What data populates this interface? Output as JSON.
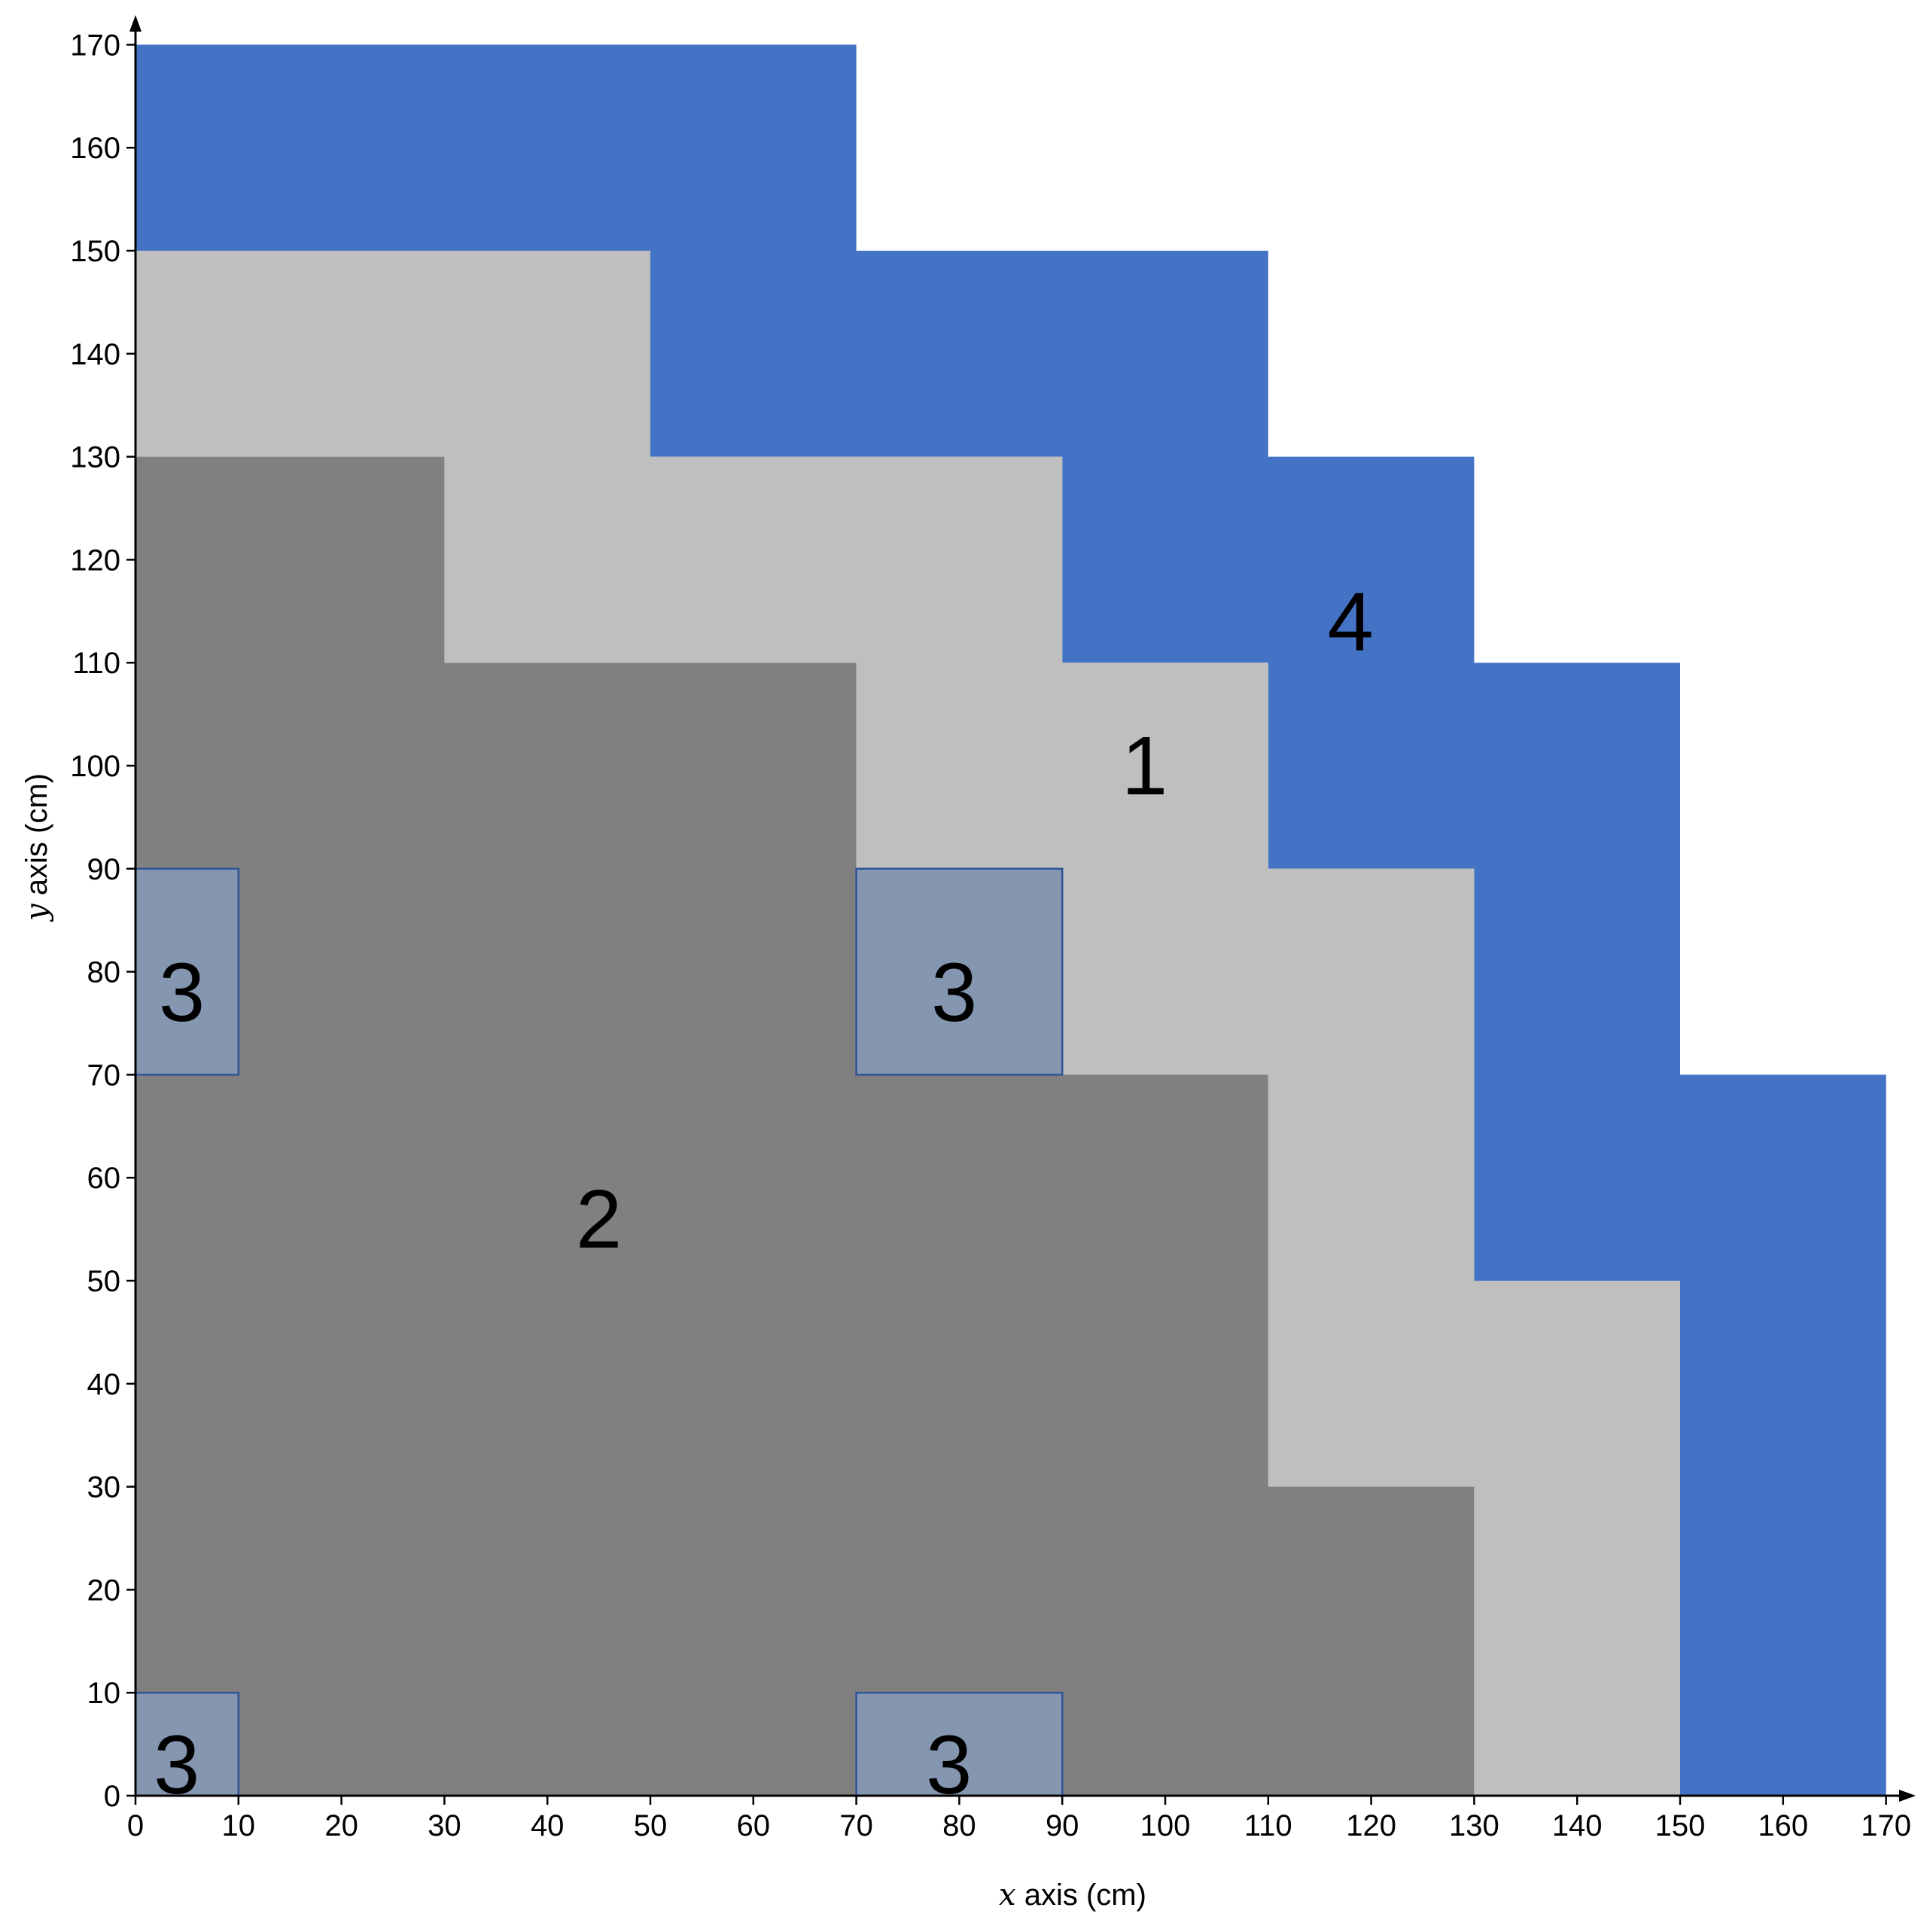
{
  "axes": {
    "x_label_var": "x",
    "x_label_rest": " axis (cm)",
    "y_label_var": "y",
    "y_label_rest": " axis (cm)",
    "x_ticks": [
      0,
      10,
      20,
      30,
      40,
      50,
      60,
      70,
      80,
      90,
      100,
      110,
      120,
      130,
      140,
      150,
      160,
      170
    ],
    "y_ticks": [
      0,
      10,
      20,
      30,
      40,
      50,
      60,
      70,
      80,
      90,
      100,
      110,
      120,
      130,
      140,
      150,
      160,
      170
    ],
    "range": [
      0,
      170
    ]
  },
  "colors": {
    "region_4": "#4472C4",
    "region_1": "#BFBFBF",
    "region_2": "#808080",
    "region_3_fill": "#8496B0",
    "region_3_stroke": "#2F5597"
  },
  "regions": {
    "region_4": {
      "label": "4",
      "label_at": [
        118,
        114
      ],
      "polygon": [
        [
          0,
          170
        ],
        [
          70,
          170
        ],
        [
          70,
          150
        ],
        [
          110,
          150
        ],
        [
          110,
          130
        ],
        [
          130,
          130
        ],
        [
          130,
          110
        ],
        [
          150,
          110
        ],
        [
          150,
          70
        ],
        [
          170,
          70
        ],
        [
          170,
          0
        ],
        [
          150,
          0
        ],
        [
          150,
          50
        ],
        [
          130,
          50
        ],
        [
          130,
          90
        ],
        [
          110,
          90
        ],
        [
          110,
          110
        ],
        [
          90,
          110
        ],
        [
          90,
          130
        ],
        [
          50,
          130
        ],
        [
          50,
          150
        ],
        [
          0,
          150
        ]
      ]
    },
    "region_1": {
      "label": "1",
      "label_at": [
        98,
        100
      ],
      "polygon": [
        [
          0,
          150
        ],
        [
          50,
          150
        ],
        [
          50,
          130
        ],
        [
          90,
          130
        ],
        [
          90,
          110
        ],
        [
          110,
          110
        ],
        [
          110,
          90
        ],
        [
          130,
          90
        ],
        [
          130,
          50
        ],
        [
          150,
          50
        ],
        [
          150,
          0
        ],
        [
          130,
          0
        ],
        [
          130,
          30
        ],
        [
          110,
          30
        ],
        [
          110,
          70
        ],
        [
          90,
          70
        ],
        [
          90,
          90
        ],
        [
          70,
          90
        ],
        [
          70,
          110
        ],
        [
          30,
          110
        ],
        [
          30,
          130
        ],
        [
          0,
          130
        ]
      ]
    },
    "region_2": {
      "label": "2",
      "label_at": [
        45,
        56
      ],
      "polygon": [
        [
          0,
          130
        ],
        [
          30,
          130
        ],
        [
          30,
          110
        ],
        [
          70,
          110
        ],
        [
          70,
          70
        ],
        [
          110,
          70
        ],
        [
          110,
          30
        ],
        [
          130,
          30
        ],
        [
          130,
          0
        ],
        [
          0,
          0
        ]
      ]
    },
    "region_3": {
      "label": "3",
      "boxes": [
        {
          "x": [
            0,
            10
          ],
          "y": [
            70,
            90
          ],
          "label_at": [
            4.5,
            78
          ]
        },
        {
          "x": [
            70,
            90
          ],
          "y": [
            70,
            90
          ],
          "label_at": [
            79.5,
            78
          ]
        },
        {
          "x": [
            0,
            10
          ],
          "y": [
            0,
            10
          ],
          "label_at": [
            4,
            3
          ]
        },
        {
          "x": [
            70,
            90
          ],
          "y": [
            0,
            10
          ],
          "label_at": [
            79,
            3
          ]
        }
      ]
    }
  }
}
